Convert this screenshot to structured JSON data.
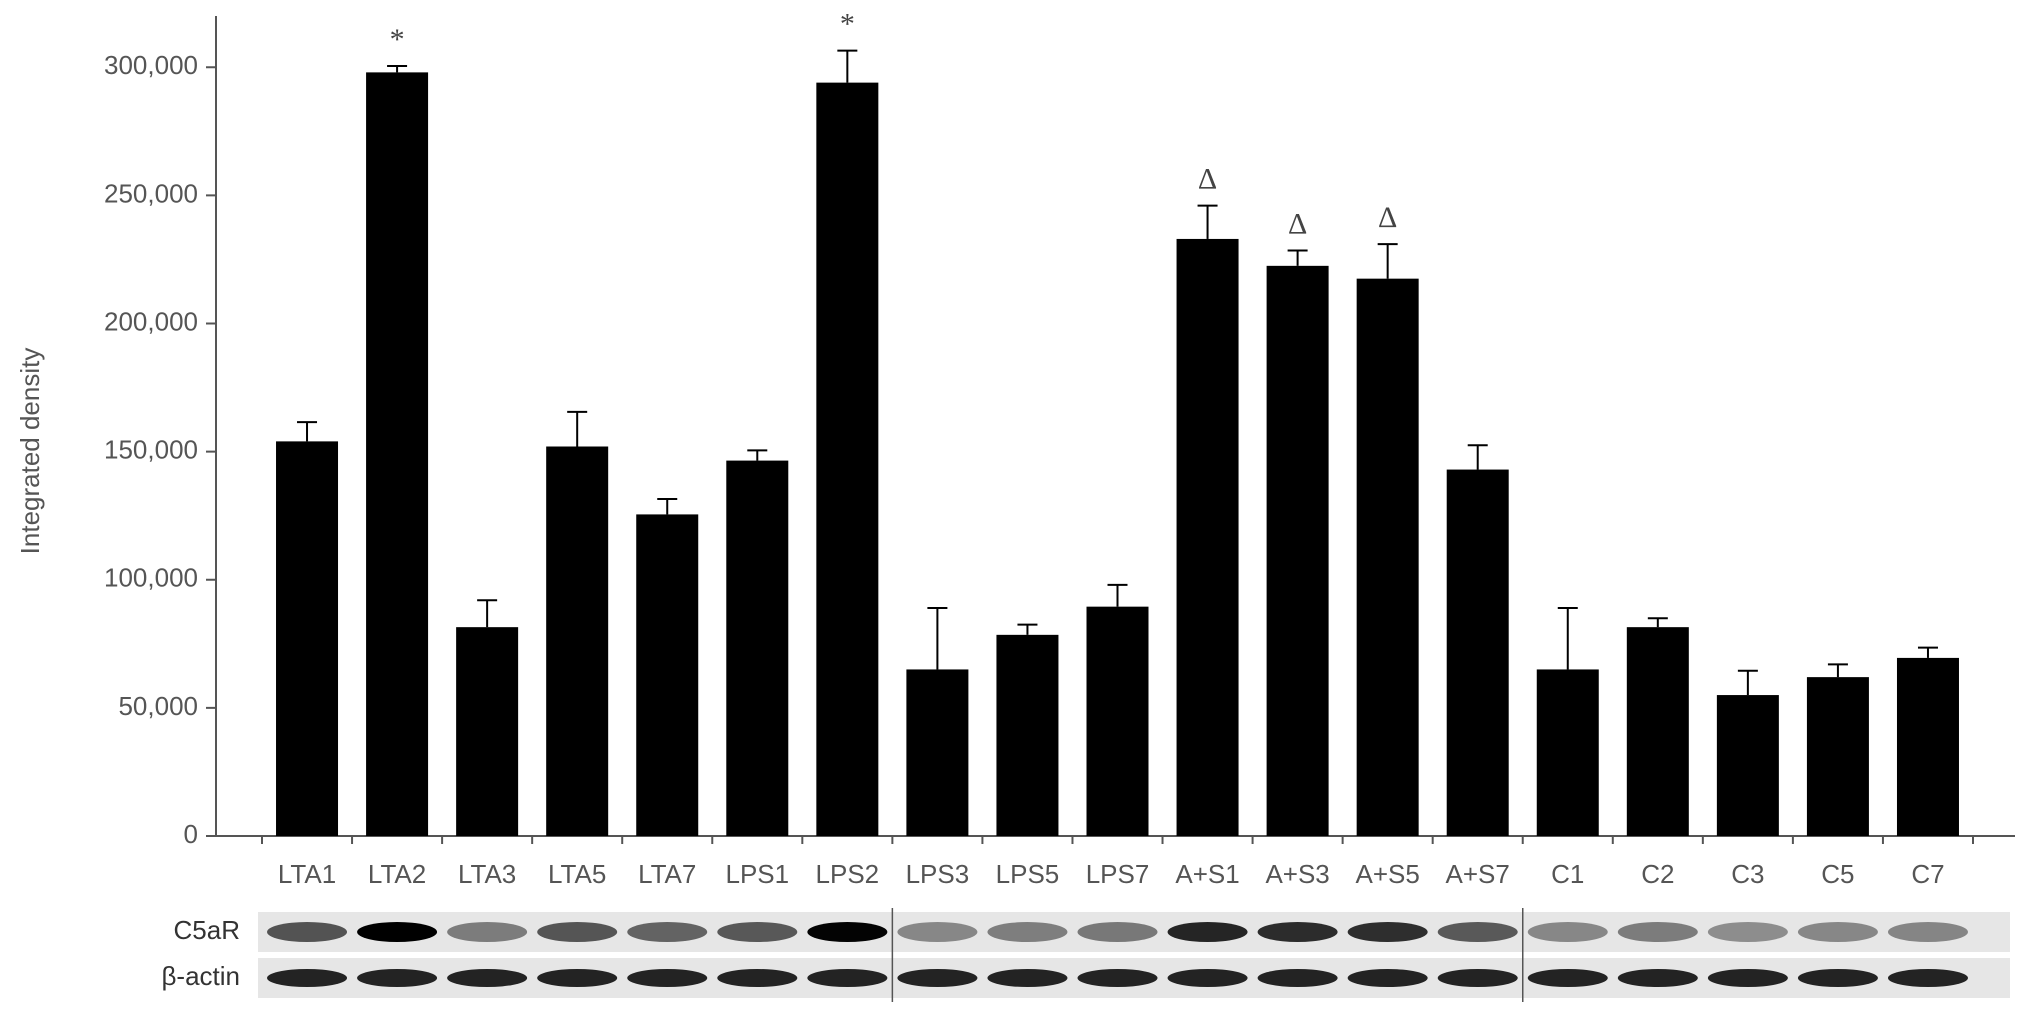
{
  "chart_data": {
    "type": "bar",
    "y_label": "Integrated density",
    "categories": [
      "LTA1",
      "LTA2",
      "LTA3",
      "LTA5",
      "LTA7",
      "LPS1",
      "LPS2",
      "LPS3",
      "LPS5",
      "LPS7",
      "A+S1",
      "A+S3",
      "A+S5",
      "A+S7",
      "C1",
      "C2",
      "C3",
      "C5",
      "C7"
    ],
    "values": [
      154000,
      298000,
      81500,
      152000,
      125500,
      146500,
      294000,
      65000,
      78500,
      89500,
      233000,
      222500,
      217500,
      143000,
      65000,
      81500,
      55000,
      62000,
      69500
    ],
    "errors": [
      7500,
      2500,
      10500,
      13500,
      6000,
      4000,
      12500,
      24000,
      4000,
      8500,
      13000,
      6000,
      13500,
      9500,
      24000,
      3500,
      9500,
      5000,
      4000
    ],
    "markers": [
      null,
      "*",
      null,
      null,
      null,
      null,
      "*",
      null,
      null,
      null,
      "Δ",
      "Δ",
      "Δ",
      null,
      null,
      null,
      null,
      null,
      null
    ],
    "color": "#000000",
    "ylim": [
      0,
      320000
    ],
    "yticks": [
      0,
      {
        "value": 50000,
        "label": "50,000"
      },
      {
        "value": 100000,
        "label": "100,000"
      },
      {
        "value": 150000,
        "label": "150,000"
      },
      {
        "value": 200000,
        "label": "200,000"
      },
      {
        "value": 250000,
        "label": "250,000"
      },
      {
        "value": 300000,
        "label": "300,000"
      }
    ],
    "blot_labels": [
      "C5aR",
      "β-actin"
    ]
  }
}
